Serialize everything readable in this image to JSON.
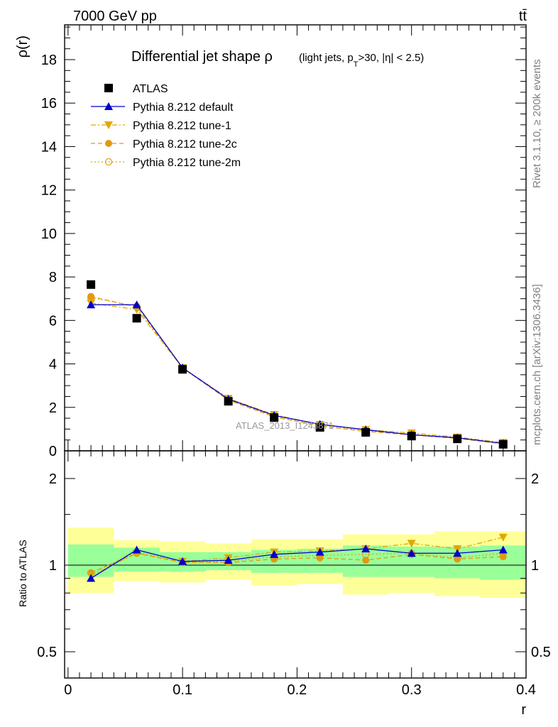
{
  "header": {
    "energy": "7000 GeV pp",
    "process": "tt̄",
    "title_main": "Differential jet shape ρ",
    "title_sub_prefix": "(light jets, p",
    "title_sub_T": "T",
    "title_sub_suffix": ">30, |η| < 2.5)",
    "rivet": "Rivet 3.1.10, ≥ 200k events",
    "mcplots": "mcplots.cern.ch [arXiv:1306.3436]",
    "watermark": "ATLAS_2013_I1243871"
  },
  "chart_data": {
    "type": "line",
    "x": [
      0.02,
      0.06,
      0.1,
      0.14,
      0.18,
      0.22,
      0.26,
      0.3,
      0.34,
      0.38
    ],
    "xlim": [
      -0.003,
      0.4
    ],
    "xlabel": "r",
    "xticks": [
      "0",
      "0.1",
      "0.2",
      "0.3",
      "0.4"
    ],
    "main": {
      "ylabel": "ρ(r)",
      "ylim": [
        0,
        19.6
      ],
      "yticks": [
        "0",
        "2",
        "4",
        "6",
        "8",
        "10",
        "12",
        "14",
        "16",
        "18"
      ]
    },
    "ratio": {
      "ylabel": "Ratio to ATLAS",
      "yticks": [
        "0.5",
        "1",
        "2"
      ],
      "bands_inner": [
        [
          0.91,
          1.18
        ],
        [
          0.95,
          1.15
        ],
        [
          0.95,
          1.11
        ],
        [
          0.96,
          1.11
        ],
        [
          0.94,
          1.13
        ],
        [
          0.94,
          1.14
        ],
        [
          0.91,
          1.17
        ],
        [
          0.91,
          1.16
        ],
        [
          0.9,
          1.16
        ],
        [
          0.89,
          1.17
        ]
      ],
      "bands_outer": [
        [
          0.8,
          1.35
        ],
        [
          0.88,
          1.22
        ],
        [
          0.87,
          1.21
        ],
        [
          0.89,
          1.19
        ],
        [
          0.85,
          1.23
        ],
        [
          0.86,
          1.23
        ],
        [
          0.79,
          1.28
        ],
        [
          0.8,
          1.28
        ],
        [
          0.78,
          1.31
        ],
        [
          0.77,
          1.31
        ]
      ]
    },
    "legend_position": "top-left",
    "series": [
      {
        "name": "ATLAS",
        "color": "#000000",
        "marker": "square",
        "line": "none",
        "values": [
          7.65,
          6.1,
          3.75,
          2.28,
          1.53,
          1.08,
          0.85,
          0.68,
          0.55,
          0.3
        ],
        "ratio": [
          1.0,
          1.0,
          1.0,
          1.0,
          1.0,
          1.0,
          1.0,
          1.0,
          1.0,
          1.0
        ]
      },
      {
        "name": "Pythia 8.212 default",
        "color": "#0000cc",
        "marker": "triangle-up",
        "line": "solid",
        "values": [
          6.72,
          6.72,
          3.82,
          2.38,
          1.63,
          1.22,
          0.97,
          0.74,
          0.6,
          0.34
        ],
        "ratio": [
          0.9,
          1.13,
          1.03,
          1.04,
          1.09,
          1.11,
          1.14,
          1.1,
          1.1,
          1.13
        ]
      },
      {
        "name": "Pythia 8.212 tune-1",
        "color": "#e0a800",
        "marker": "triangle-down",
        "line": "dashdot",
        "values": [
          6.8,
          6.5,
          3.82,
          2.41,
          1.66,
          1.21,
          0.97,
          0.82,
          0.63,
          0.38
        ],
        "ratio": [
          0.92,
          1.1,
          1.03,
          1.06,
          1.11,
          1.12,
          1.14,
          1.19,
          1.14,
          1.25
        ]
      },
      {
        "name": "Pythia 8.212 tune-2c",
        "color": "#e09a10",
        "marker": "circle",
        "line": "dashed",
        "values": [
          7.1,
          6.62,
          3.82,
          2.33,
          1.56,
          1.15,
          0.89,
          0.74,
          0.57,
          0.32
        ],
        "ratio": [
          0.94,
          1.1,
          1.02,
          1.02,
          1.05,
          1.06,
          1.04,
          1.09,
          1.05,
          1.07
        ]
      },
      {
        "name": "Pythia 8.212 tune-2m",
        "color": "#e0a010",
        "marker": "circle-open",
        "line": "dotted",
        "values": [
          7.05,
          6.65,
          3.8,
          2.35,
          1.58,
          1.16,
          0.92,
          0.76,
          0.58,
          0.33
        ],
        "ratio": [
          0.94,
          1.11,
          1.02,
          1.03,
          1.07,
          1.08,
          1.09,
          1.1,
          1.06,
          1.1
        ]
      }
    ]
  }
}
